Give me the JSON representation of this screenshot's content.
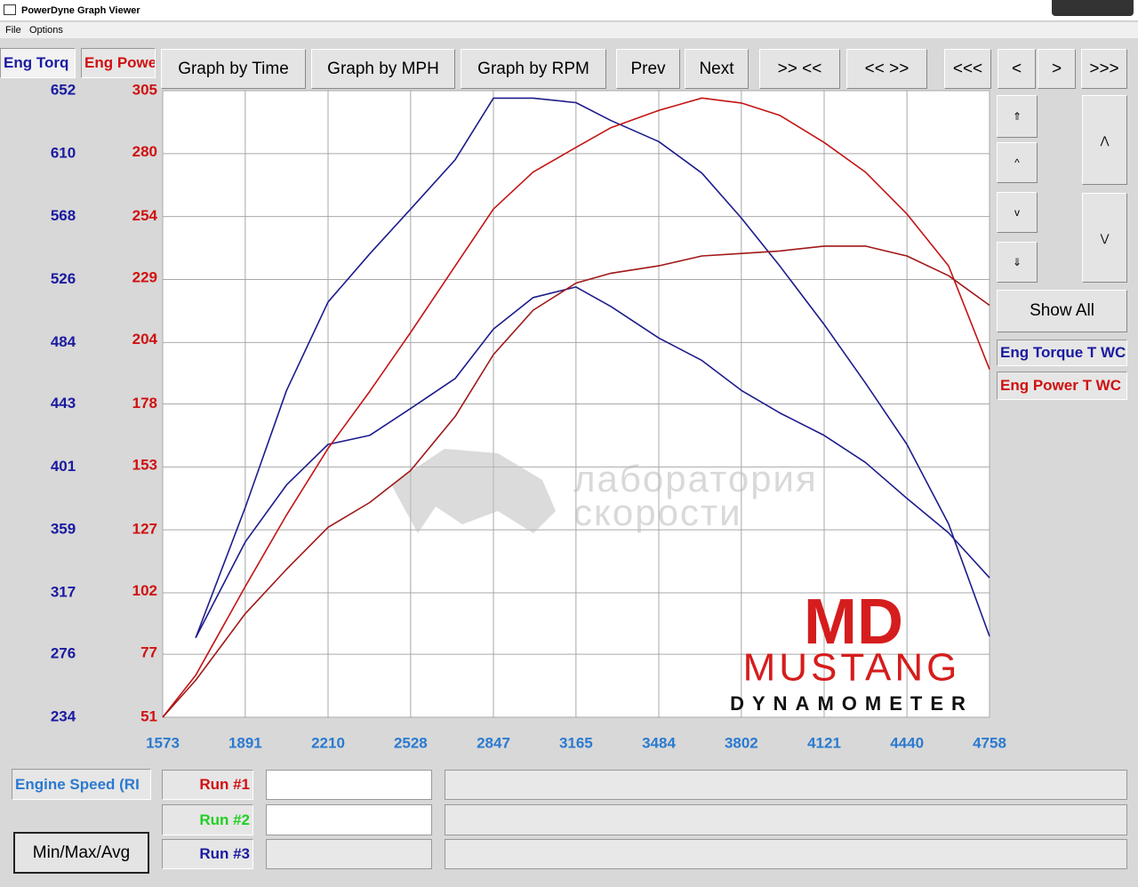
{
  "window": {
    "title": "PowerDyne Graph Viewer",
    "menu": [
      "File",
      "Options"
    ]
  },
  "tabs": [
    "Eng Torq",
    "Eng Powe"
  ],
  "toolbar": [
    "Graph by Time",
    "Graph by MPH",
    "Graph by RPM",
    "Prev",
    "Next",
    ">> <<",
    "<< >>",
    "<<<",
    "<",
    ">",
    ">>>"
  ],
  "side": {
    "show_all": "Show All",
    "legend": [
      "Eng Torque T WC",
      "Eng Power T WC"
    ]
  },
  "footer": {
    "x_selector": "Engine Speed (RI",
    "runs": [
      "Run #1",
      "Run #2",
      "Run #3"
    ],
    "button": "Min/Max/Avg"
  },
  "watermark": {
    "lines": [
      "лаборатория",
      "скорости"
    ]
  },
  "logo": {
    "mark": "MD",
    "name": "MUSTANG",
    "sub": "DYNAMOMETER"
  },
  "chart_data": {
    "type": "line",
    "x": [
      1573,
      1700,
      1891,
      2050,
      2210,
      2370,
      2528,
      2700,
      2847,
      3000,
      3165,
      3300,
      3484,
      3650,
      3802,
      3950,
      4121,
      4280,
      4440,
      4600,
      4758
    ],
    "xlim": [
      1573,
      4758
    ],
    "xticks": [
      1573,
      1891,
      2210,
      2528,
      2847,
      3165,
      3484,
      3802,
      4121,
      4440,
      4758
    ],
    "ylim": [
      234,
      652
    ],
    "yticks": [
      234,
      276,
      317,
      359,
      401,
      443,
      484,
      526,
      568,
      610,
      652
    ],
    "y2lim": [
      51,
      305
    ],
    "y2ticks": [
      51,
      77,
      102,
      127,
      153,
      178,
      204,
      229,
      254,
      280,
      305
    ],
    "grid": true,
    "series": [
      {
        "color": "#1c1c8c",
        "values": [
          null,
          287,
          374,
          452,
          511,
          543,
          573,
          606,
          647,
          647,
          644,
          632,
          618,
          597,
          567,
          535,
          496,
          457,
          416,
          363,
          288
        ]
      },
      {
        "color": "#1c1c8c",
        "values": [
          null,
          287,
          351,
          389,
          416,
          422,
          440,
          460,
          493,
          514,
          521,
          508,
          487,
          472,
          452,
          437,
          422,
          404,
          380,
          357,
          327
        ]
      },
      {
        "color": "#c41414",
        "axis": "y2",
        "values": [
          51,
          68,
          104,
          133,
          160,
          183,
          207,
          234,
          257,
          272,
          282,
          290,
          297,
          302,
          300,
          295,
          284,
          272,
          255,
          234,
          192
        ]
      },
      {
        "color": "#a01818",
        "axis": "y2",
        "values": [
          51,
          66,
          93,
          111,
          128,
          138,
          151,
          173,
          198,
          216,
          227,
          231,
          234,
          238,
          239,
          240,
          242,
          242,
          238,
          230,
          218
        ]
      }
    ]
  }
}
